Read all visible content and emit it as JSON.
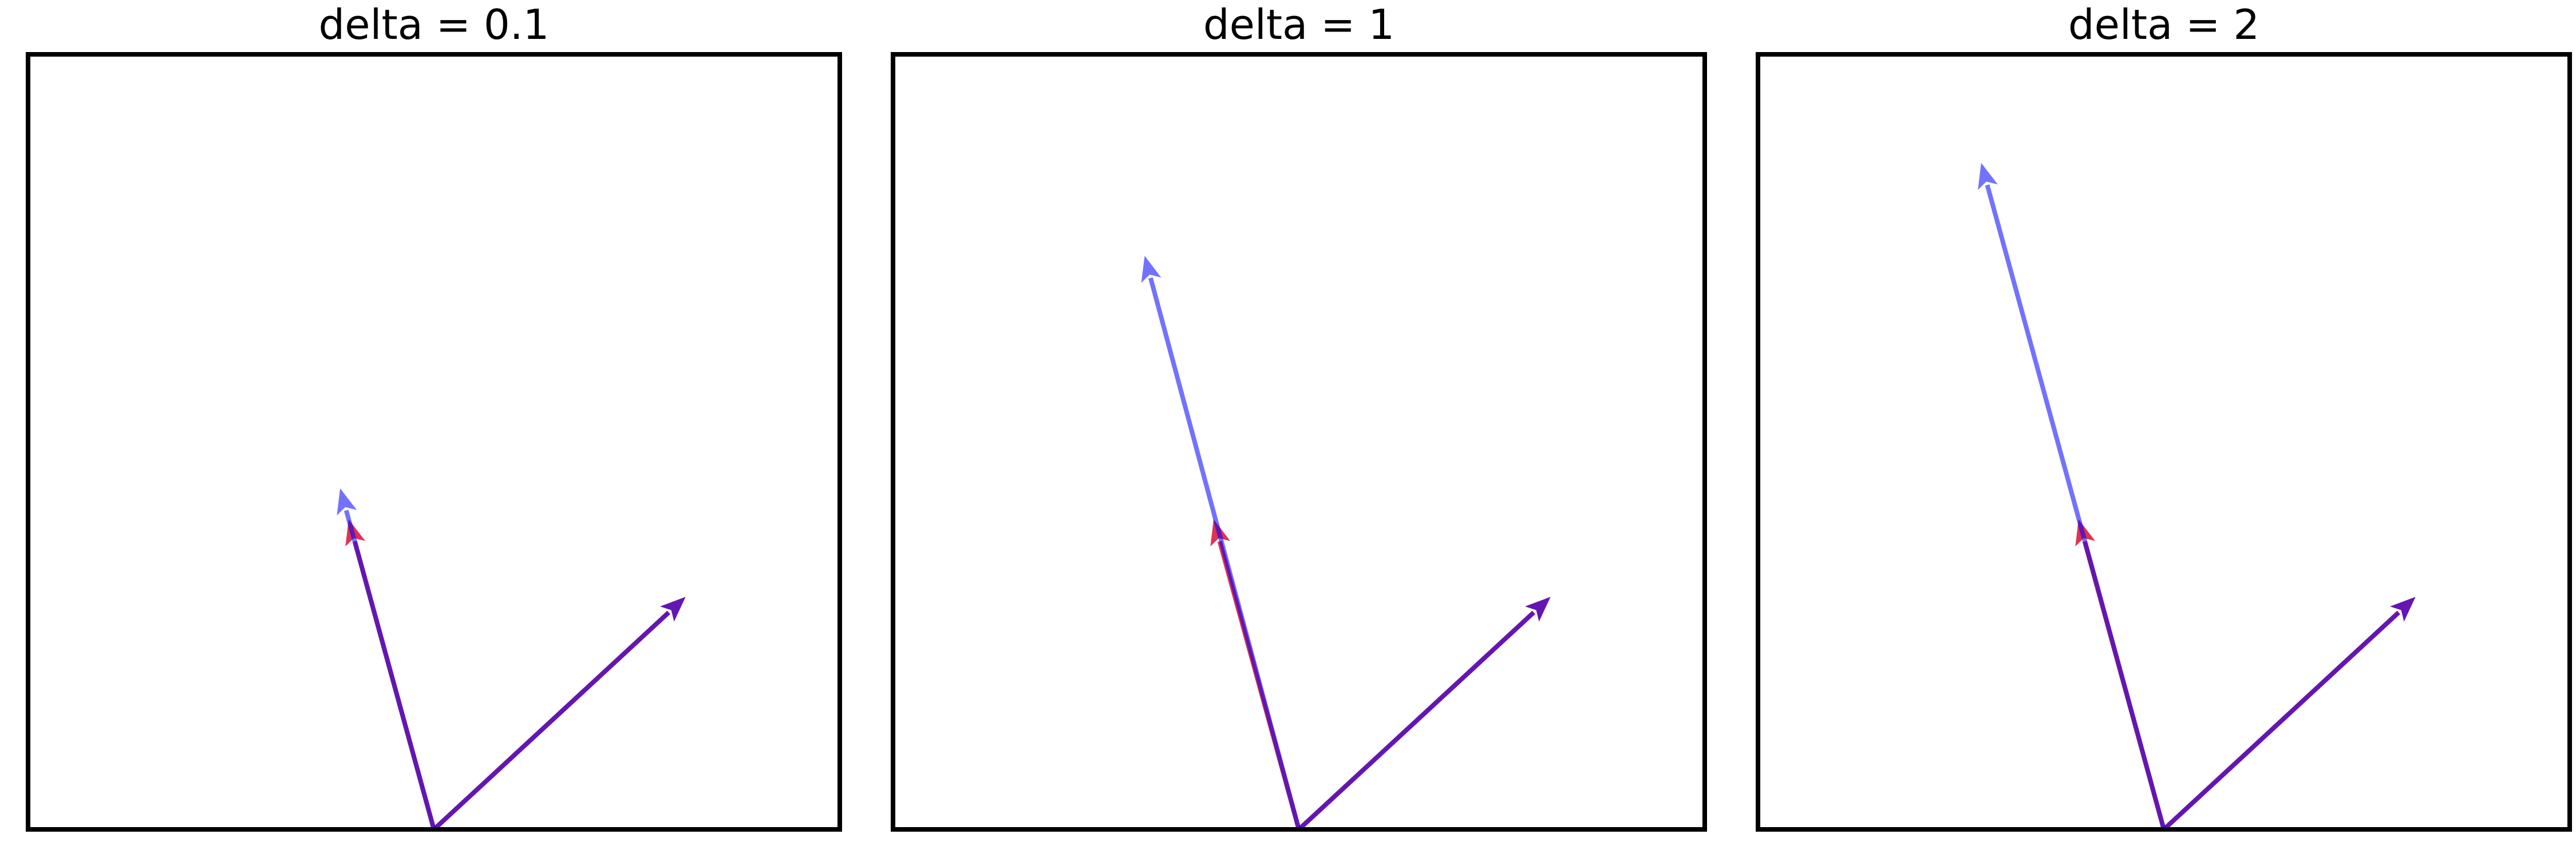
{
  "chart_data": [
    {
      "type": "quiver",
      "title": "delta = 0.1",
      "xlim": [
        -1,
        1
      ],
      "ylim": [
        0,
        2
      ],
      "grid": false,
      "axes_visible": false,
      "arrows": [
        {
          "role": "original-1",
          "x0": 0,
          "y0": 0,
          "dx": 0.62,
          "dy": 0.6,
          "color": "#800080",
          "alpha": 0.55
        },
        {
          "role": "original-2",
          "x0": 0,
          "y0": 0,
          "dx": -0.21,
          "dy": 0.8,
          "color": "#800080",
          "alpha": 0.55
        },
        {
          "role": "red-1",
          "x0": 0,
          "y0": 0,
          "dx": 0.62,
          "dy": 0.6,
          "color": "#ff0000",
          "alpha": 0.55
        },
        {
          "role": "red-2",
          "x0": 0,
          "y0": 0,
          "dx": -0.21,
          "dy": 0.8,
          "color": "#ff0000",
          "alpha": 0.55
        },
        {
          "role": "blue-1",
          "x0": 0,
          "y0": 0,
          "dx": 0.62,
          "dy": 0.6,
          "color": "#0000ff",
          "alpha": 0.55
        },
        {
          "role": "blue-2",
          "x0": 0,
          "y0": 0,
          "dx": -0.231,
          "dy": 0.88,
          "color": "#0000ff",
          "alpha": 0.55
        }
      ]
    },
    {
      "type": "quiver",
      "title": "delta = 1",
      "xlim": [
        -1,
        1
      ],
      "ylim": [
        0,
        2
      ],
      "grid": false,
      "axes_visible": false,
      "arrows": [
        {
          "role": "original-1",
          "x0": 0,
          "y0": 0,
          "dx": 0.62,
          "dy": 0.6,
          "color": "#800080",
          "alpha": 0.55
        },
        {
          "role": "original-2",
          "x0": 0,
          "y0": 0,
          "dx": -0.21,
          "dy": 0.8,
          "color": "#800080",
          "alpha": 0.55
        },
        {
          "role": "red-1",
          "x0": 0,
          "y0": 0,
          "dx": 0.62,
          "dy": 0.6,
          "color": "#ff0000",
          "alpha": 0.55
        },
        {
          "role": "red-2",
          "x0": 0,
          "y0": 0,
          "dx": -0.21,
          "dy": 0.8,
          "color": "#ff0000",
          "alpha": 0.55
        },
        {
          "role": "blue-1",
          "x0": 0,
          "y0": 0,
          "dx": 0.62,
          "dy": 0.6,
          "color": "#0000ff",
          "alpha": 0.55
        },
        {
          "role": "blue-2",
          "x0": 0,
          "y0": 0,
          "dx": -0.38,
          "dy": 1.48,
          "color": "#0000ff",
          "alpha": 0.55
        }
      ]
    },
    {
      "type": "quiver",
      "title": "delta = 2",
      "xlim": [
        -1,
        1
      ],
      "ylim": [
        0,
        2
      ],
      "grid": false,
      "axes_visible": false,
      "arrows": [
        {
          "role": "original-1",
          "x0": 0,
          "y0": 0,
          "dx": 0.62,
          "dy": 0.6,
          "color": "#800080",
          "alpha": 0.55
        },
        {
          "role": "original-2",
          "x0": 0,
          "y0": 0,
          "dx": -0.21,
          "dy": 0.8,
          "color": "#800080",
          "alpha": 0.55
        },
        {
          "role": "red-1",
          "x0": 0,
          "y0": 0,
          "dx": 0.62,
          "dy": 0.6,
          "color": "#ff0000",
          "alpha": 0.55
        },
        {
          "role": "red-2",
          "x0": 0,
          "y0": 0,
          "dx": -0.21,
          "dy": 0.8,
          "color": "#ff0000",
          "alpha": 0.55
        },
        {
          "role": "blue-1",
          "x0": 0,
          "y0": 0,
          "dx": 0.62,
          "dy": 0.6,
          "color": "#0000ff",
          "alpha": 0.55
        },
        {
          "role": "blue-2",
          "x0": 0,
          "y0": 0,
          "dx": -0.45,
          "dy": 1.72,
          "color": "#0000ff",
          "alpha": 0.55
        }
      ]
    }
  ]
}
